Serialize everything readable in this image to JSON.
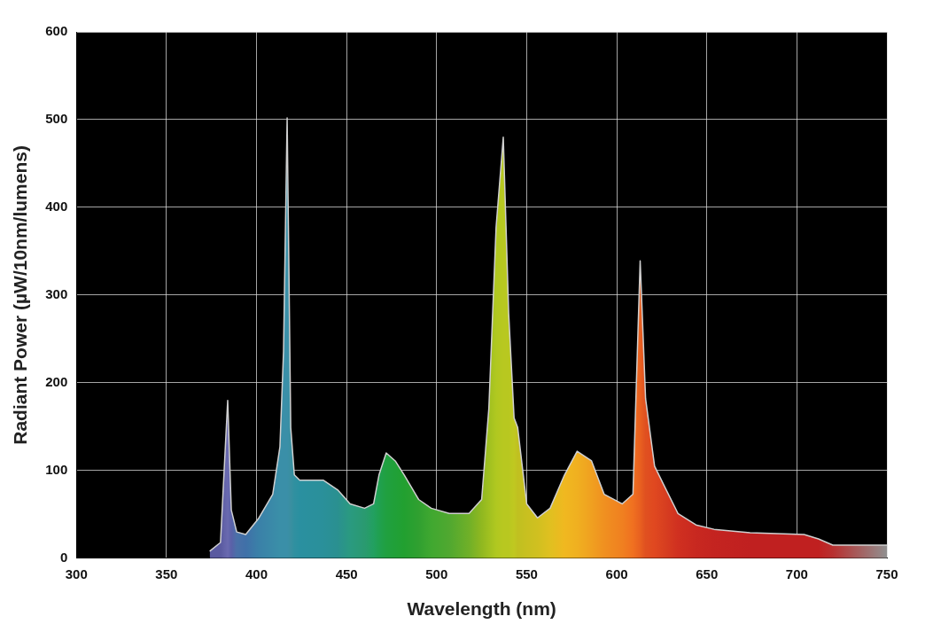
{
  "chart_data": {
    "type": "area",
    "xlabel": "Wavelength (nm)",
    "ylabel": "Radiant Power (µW/10nm/lumens)",
    "xlim": [
      300,
      750
    ],
    "xticks": [
      300,
      350,
      400,
      450,
      500,
      550,
      600,
      650,
      700,
      750
    ],
    "ylim": [
      0,
      600
    ],
    "yticks": [
      0,
      100,
      200,
      300,
      400,
      500,
      600
    ],
    "grid": true,
    "marker": "none",
    "series": [
      {
        "color": "#d0d0d0",
        "x": [
          374,
          380,
          384,
          386,
          389,
          394,
          401,
          409,
          413,
          415,
          417,
          419,
          421,
          424,
          437,
          445,
          452,
          460,
          465,
          468,
          472,
          477,
          482,
          490,
          497,
          507,
          518,
          525,
          529,
          533,
          537,
          540,
          543,
          545,
          550,
          556,
          563,
          571,
          578,
          586,
          593,
          603,
          609,
          613,
          616,
          621,
          626,
          634,
          644,
          654,
          674,
          704,
          712,
          720,
          750
        ],
        "values": [
          8,
          18,
          180,
          55,
          30,
          27,
          45,
          73,
          127,
          236,
          502,
          149,
          95,
          89,
          89,
          78,
          62,
          57,
          62,
          95,
          120,
          111,
          95,
          67,
          57,
          51,
          51,
          67,
          171,
          377,
          480,
          279,
          160,
          149,
          62,
          46,
          57,
          95,
          122,
          111,
          73,
          62,
          73,
          339,
          182,
          105,
          84,
          51,
          38,
          33,
          29,
          27,
          22,
          15,
          15
        ],
        "colors": [
          "#5a5aa0",
          "#5a5aa0",
          "#6a6ab0",
          "#5a60a8",
          "#4a70a8",
          "#4070a8",
          "#3a80a8",
          "#3a8aa8",
          "#3a8fa8",
          "#3a8fa8",
          "#3a8fa8",
          "#3a8fa0",
          "#3090a0",
          "#2a90a0",
          "#2a909a",
          "#2a9090",
          "#2a9a80",
          "#2a9a70",
          "#22a060",
          "#20a050",
          "#20a040",
          "#20a038",
          "#22a030",
          "#30a030",
          "#40a830",
          "#50a830",
          "#70b028",
          "#90b820",
          "#a0c020",
          "#b0c820",
          "#b8c820",
          "#b8c820",
          "#c0c820",
          "#c0c020",
          "#c8c020",
          "#d0c020",
          "#e0c020",
          "#f0b820",
          "#f0b020",
          "#f0a020",
          "#f09020",
          "#f08020",
          "#f07020",
          "#e86020",
          "#e05020",
          "#e04820",
          "#d84020",
          "#d03020",
          "#c82820",
          "#c42420",
          "#c02020",
          "#c02020",
          "#c02020",
          "#b83030",
          "#909090"
        ]
      }
    ]
  }
}
